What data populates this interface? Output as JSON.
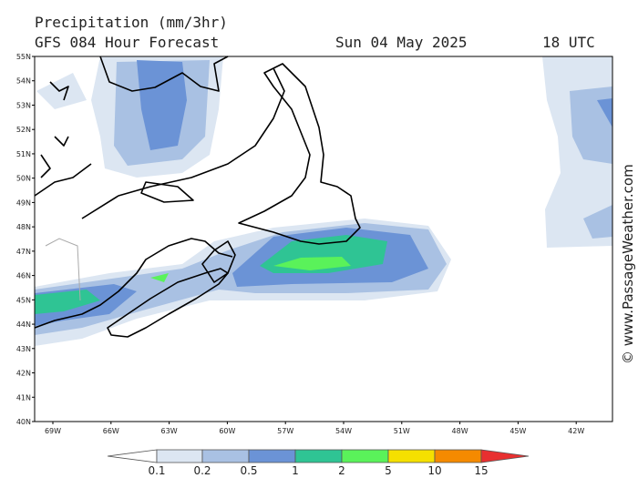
{
  "header": {
    "title": "Precipitation (mm/3hr)",
    "model": "GFS 084 Hour Forecast",
    "date": "Sun 04 May 2025",
    "time": "18 UTC"
  },
  "map": {
    "lat_labels": [
      "55N",
      "54N",
      "53N",
      "52N",
      "51N",
      "50N",
      "49N",
      "48N",
      "47N",
      "46N",
      "45N",
      "44N",
      "43N",
      "42N",
      "41N",
      "40N"
    ],
    "lon_labels": [
      "69W",
      "66W",
      "63W",
      "60W",
      "57W",
      "54W",
      "51W",
      "48W",
      "45W",
      "42W"
    ]
  },
  "legend": {
    "labels": [
      "0.1",
      "0.2",
      "0.5",
      "1",
      "2",
      "5",
      "10",
      "15"
    ]
  },
  "credit": "© www.PassageWeather.com"
}
